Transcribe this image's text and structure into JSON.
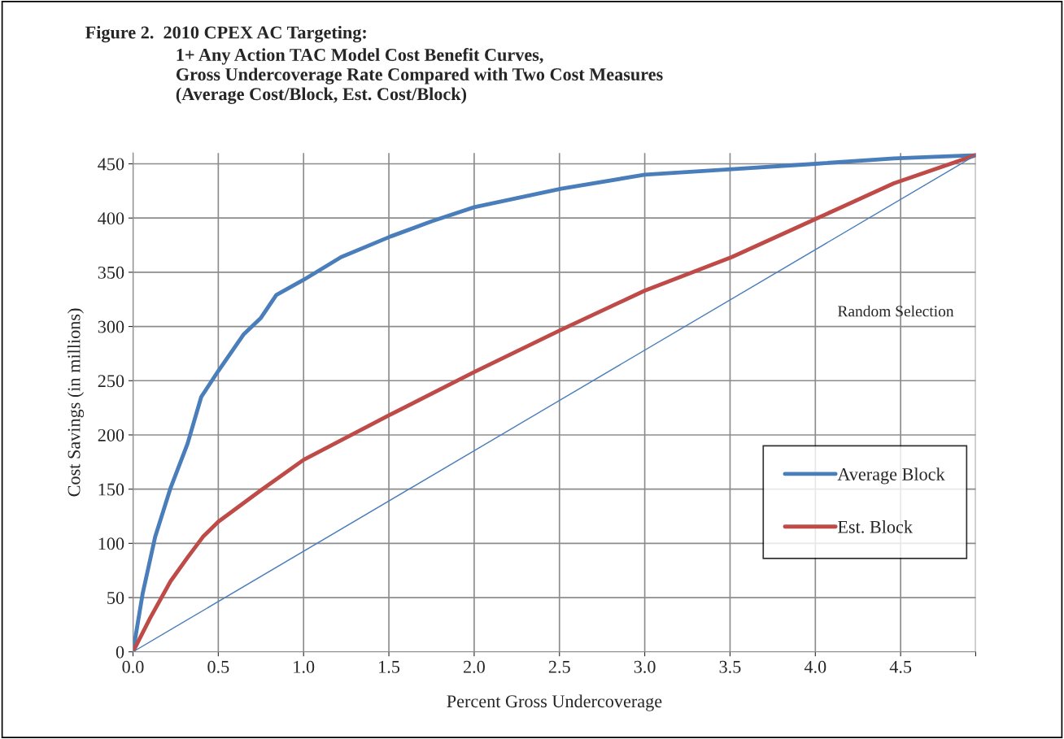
{
  "chart_data": {
    "type": "line",
    "title": "Figure 2.  2010 CPEX AC Targeting:",
    "subtitle": "1+ Any Action TAC Model Cost Benefit Curves,\nGross Undercoverage Rate Compared with Two Cost Measures\n(Average Cost/Block, Est. Cost/Block)",
    "xlabel": "Percent Gross Undercoverage",
    "ylabel": "Cost Savings (in millions)",
    "series": [
      {
        "name": "Average Block",
        "color": "#4a7ebb",
        "x": [
          0,
          0.057,
          0.13,
          0.22,
          0.32,
          0.4,
          0.5,
          0.65,
          0.75,
          0.84,
          1.0,
          1.22,
          1.51,
          1.75,
          2.0,
          2.51,
          3.0,
          3.51,
          4.0,
          4.46,
          4.94
        ],
        "values": [
          0,
          54,
          106,
          151,
          192,
          235,
          259,
          293,
          308,
          329,
          343,
          364,
          383,
          397,
          410,
          427,
          440,
          445,
          450,
          455,
          458
        ]
      },
      {
        "name": "Est. Block",
        "color": "#be4b48",
        "x": [
          0,
          0.1,
          0.22,
          0.32,
          0.41,
          0.5,
          0.75,
          1.0,
          1.5,
          2.0,
          2.51,
          3.0,
          3.51,
          4.0,
          4.46,
          4.94
        ],
        "values": [
          0,
          31,
          65,
          87,
          106,
          120,
          149,
          177,
          218,
          258,
          297,
          333,
          364,
          399,
          432,
          458
        ]
      },
      {
        "color": "#4a7ebb",
        "x": [
          0,
          4.94
        ],
        "values": [
          0,
          458
        ]
      }
    ],
    "annotations": [
      "Random Selection"
    ],
    "xlim": [
      0,
      4.94
    ],
    "ylim": [
      0,
      460
    ],
    "xticks": [
      {
        "value": 0,
        "label": "0.0"
      },
      0.5,
      {
        "value": 1,
        "label": "1.0"
      },
      1.5,
      {
        "value": 2,
        "label": "2.0"
      },
      2.5,
      {
        "value": 3,
        "label": "3.0"
      },
      3.5,
      {
        "value": 4,
        "label": "4.0"
      },
      4.5,
      {
        "value": 4.94,
        "label": null
      }
    ],
    "yticks": [
      0,
      50,
      100,
      150,
      200,
      250,
      300,
      350,
      400,
      450
    ],
    "grid": true,
    "legend": "right"
  }
}
